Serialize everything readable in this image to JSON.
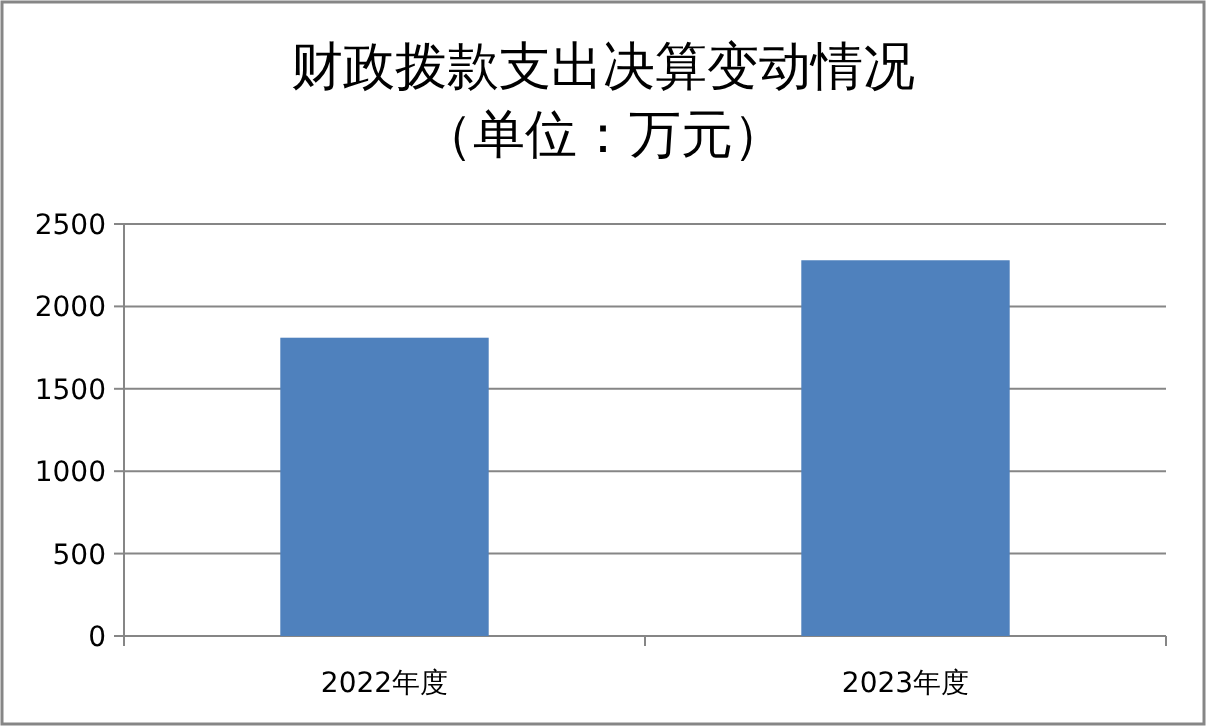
{
  "chart_data": {
    "type": "bar",
    "title": "财政拨款支出决算变动情况（单位：万元）",
    "categories": [
      "2022年度",
      "2023年度"
    ],
    "values": [
      1810,
      2280
    ],
    "color": "#4f81bd",
    "ylim": [
      0,
      2500
    ],
    "yticks": [
      0,
      500,
      1000,
      1500,
      2000,
      2500
    ],
    "grid": "y"
  }
}
